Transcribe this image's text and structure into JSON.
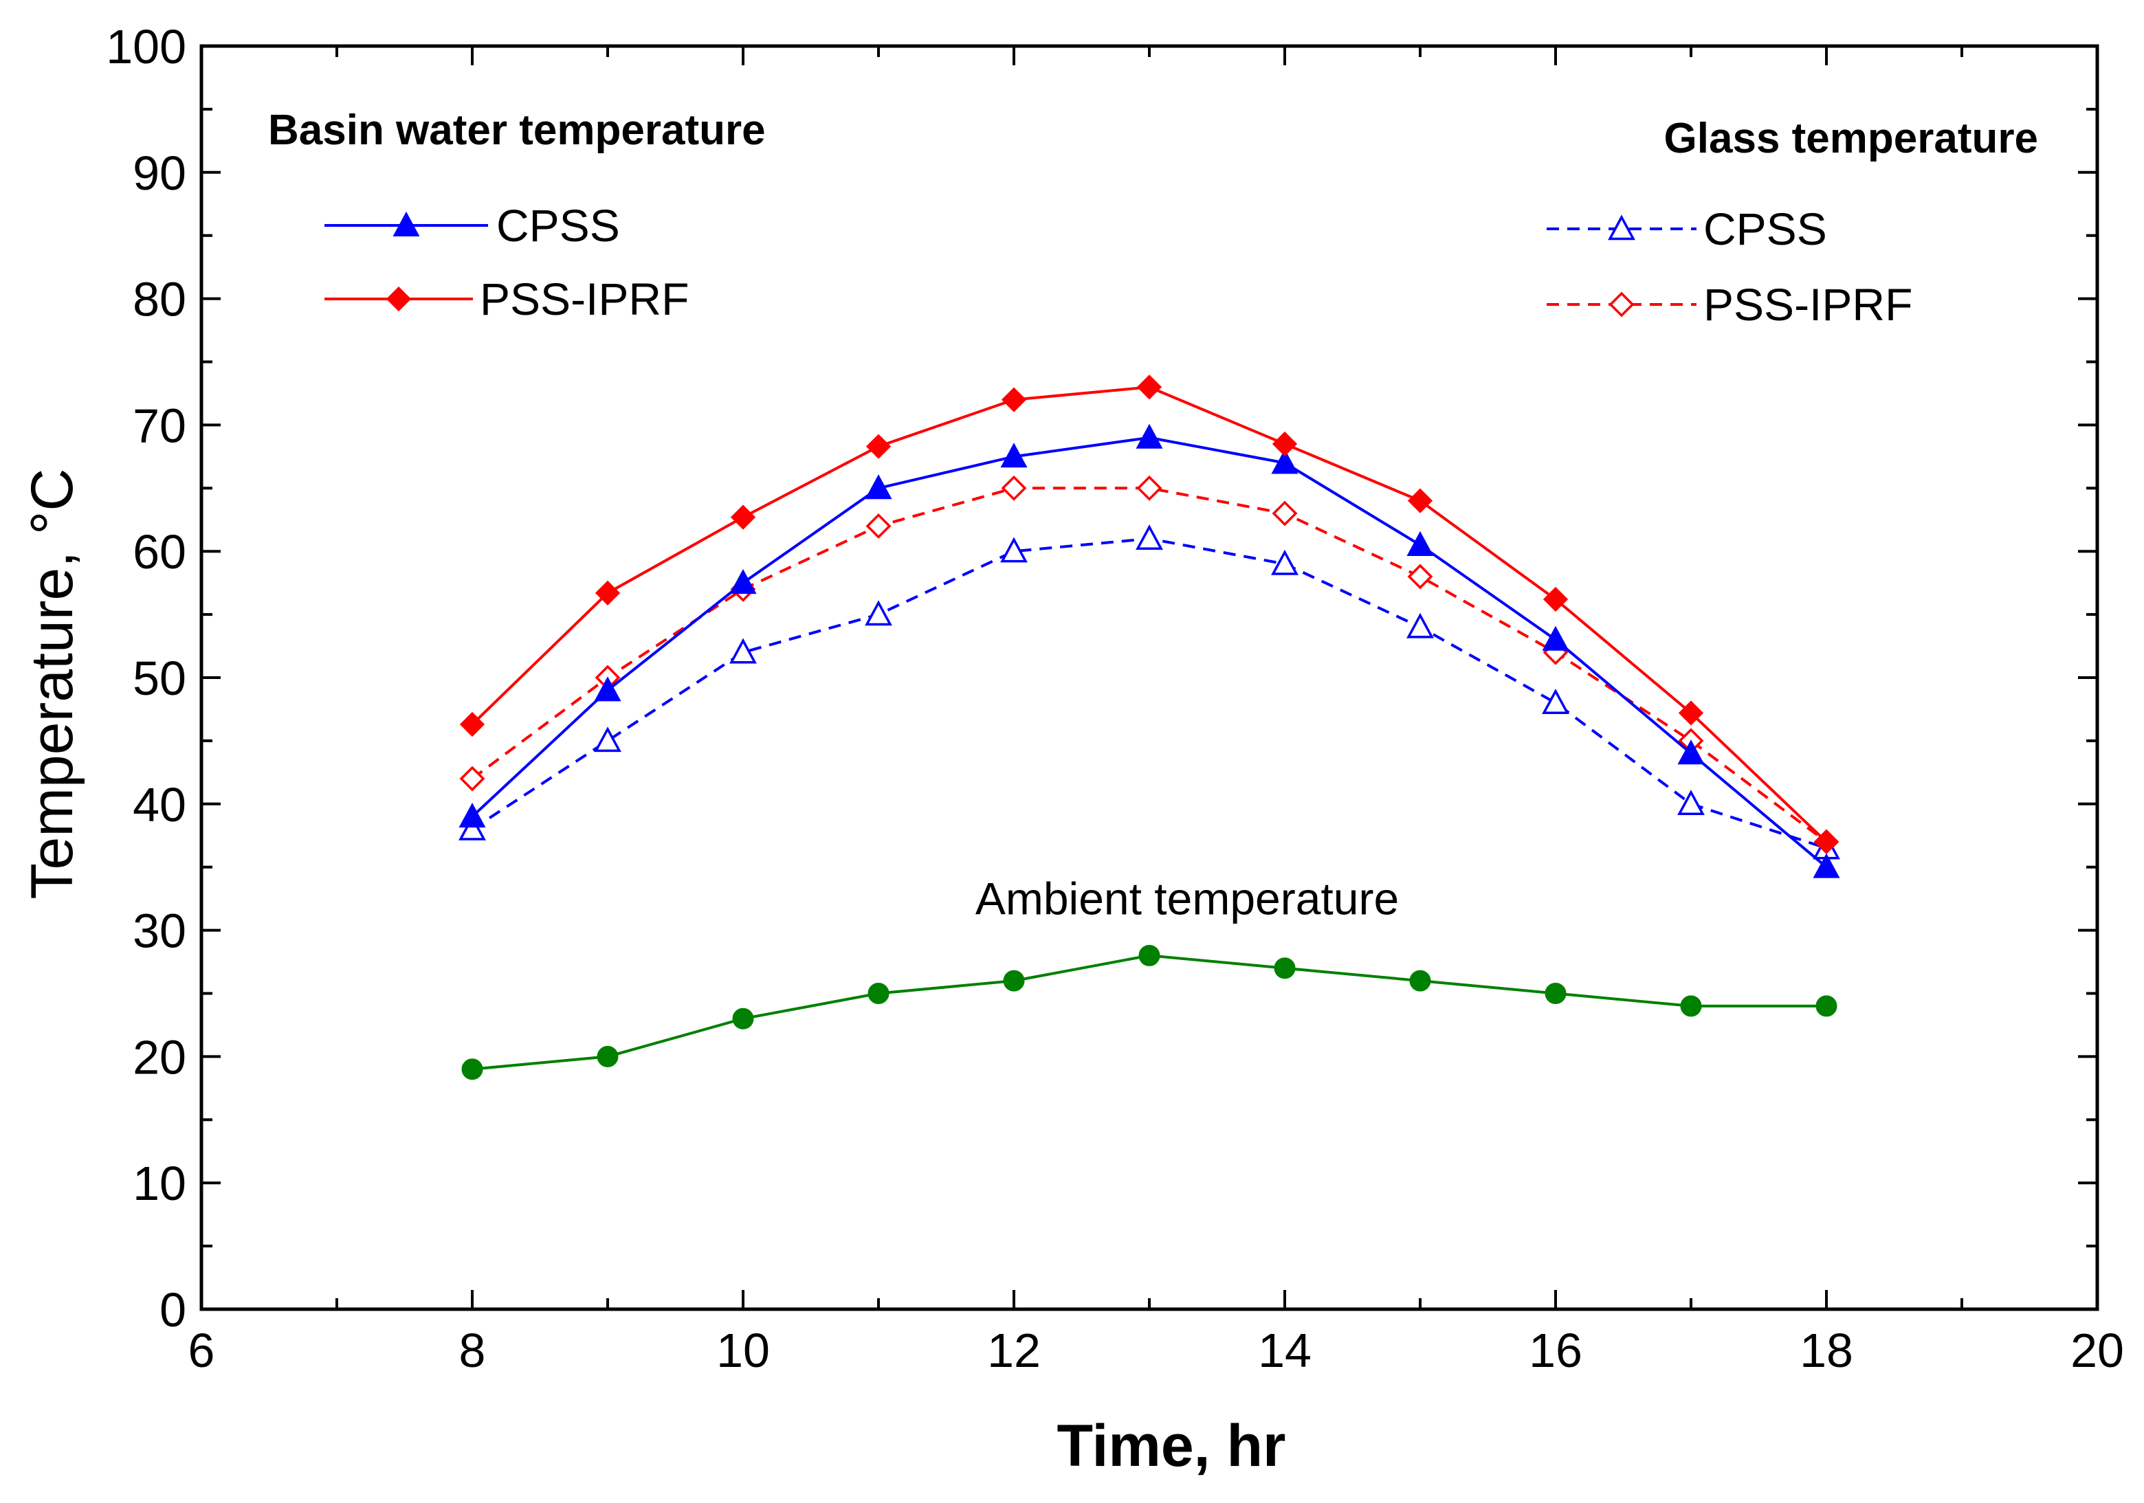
{
  "chart_data": {
    "type": "line",
    "title": "",
    "xlabel": "Time, hr",
    "ylabel": "Temperature, °C",
    "xlim": [
      6,
      20
    ],
    "ylim": [
      0,
      100
    ],
    "xticks": [
      6,
      8,
      10,
      12,
      14,
      16,
      18,
      20
    ],
    "yticks": [
      0,
      10,
      20,
      30,
      40,
      50,
      60,
      70,
      80,
      90,
      100
    ],
    "x": [
      8,
      9,
      10,
      11,
      12,
      13,
      14,
      15,
      16,
      17,
      18
    ],
    "legend_groups": [
      {
        "title": "Basin water temperature",
        "position": "top-left"
      },
      {
        "title": "Glass temperature",
        "position": "top-right"
      }
    ],
    "series": [
      {
        "name": "CPSS",
        "group": "Basin water temperature",
        "color": "#0000ff",
        "style": "solid",
        "marker": "triangle-filled",
        "values": [
          39,
          49,
          57.5,
          65,
          67.5,
          69,
          67,
          60.5,
          53,
          44,
          35
        ]
      },
      {
        "name": "PSS-IPRF",
        "group": "Basin water temperature",
        "color": "#ff0000",
        "style": "solid",
        "marker": "diamond-filled",
        "values": [
          46.3,
          56.7,
          62.7,
          68.3,
          72,
          73,
          68.5,
          64,
          56.2,
          47.2,
          37
        ]
      },
      {
        "name": "CPSS",
        "group": "Glass temperature",
        "color": "#0000ff",
        "style": "dashed",
        "marker": "triangle-open",
        "values": [
          38,
          45,
          52,
          55,
          60,
          61,
          59,
          54,
          48,
          40,
          36.5
        ]
      },
      {
        "name": "PSS-IPRF",
        "group": "Glass temperature",
        "color": "#ff0000",
        "style": "dashed",
        "marker": "diamond-open",
        "values": [
          42,
          50,
          57,
          62,
          65,
          65,
          63,
          58,
          52,
          45,
          37
        ]
      },
      {
        "name": "Ambient temperature",
        "group": "Ambient",
        "color": "#008000",
        "style": "solid",
        "marker": "circle-filled",
        "values": [
          19,
          20,
          23,
          25,
          26,
          28,
          27,
          26,
          25,
          24,
          24
        ]
      }
    ],
    "annotations": [
      {
        "text": "Ambient temperature",
        "x": 13,
        "y": 32.5
      }
    ]
  }
}
